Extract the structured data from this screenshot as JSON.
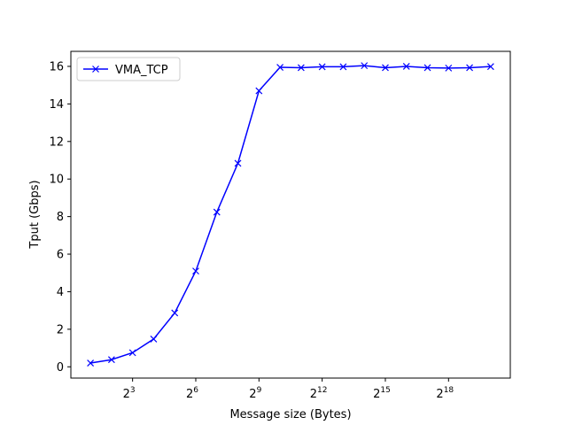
{
  "chart_data": {
    "type": "line",
    "title": "",
    "xlabel": "Message size (Bytes)",
    "ylabel": "Tput (Gbps)",
    "x_scale": "log2",
    "x": [
      2,
      4,
      8,
      16,
      32,
      64,
      128,
      256,
      512,
      1024,
      2048,
      4096,
      8192,
      16384,
      32768,
      65536,
      131072,
      262144,
      524288,
      1048576
    ],
    "xlim": [
      1.05,
      2000000
    ],
    "ylim": [
      -0.6,
      16.8
    ],
    "x_ticks": [
      {
        "value": 8,
        "base": "2",
        "exp": "3"
      },
      {
        "value": 64,
        "base": "2",
        "exp": "6"
      },
      {
        "value": 512,
        "base": "2",
        "exp": "9"
      },
      {
        "value": 4096,
        "base": "2",
        "exp": "12"
      },
      {
        "value": 32768,
        "base": "2",
        "exp": "15"
      },
      {
        "value": 262144,
        "base": "2",
        "exp": "18"
      }
    ],
    "y_ticks": [
      0,
      2,
      4,
      6,
      8,
      10,
      12,
      14,
      16
    ],
    "grid": false,
    "legend_position": "top-left",
    "series": [
      {
        "name": "VMA_TCP",
        "color": "#0000ff",
        "marker": "x",
        "values": [
          0.2,
          0.38,
          0.75,
          1.48,
          2.87,
          5.1,
          8.24,
          10.84,
          14.7,
          15.95,
          15.93,
          15.98,
          15.98,
          16.04,
          15.93,
          16.0,
          15.93,
          15.91,
          15.93,
          15.99
        ]
      }
    ]
  }
}
